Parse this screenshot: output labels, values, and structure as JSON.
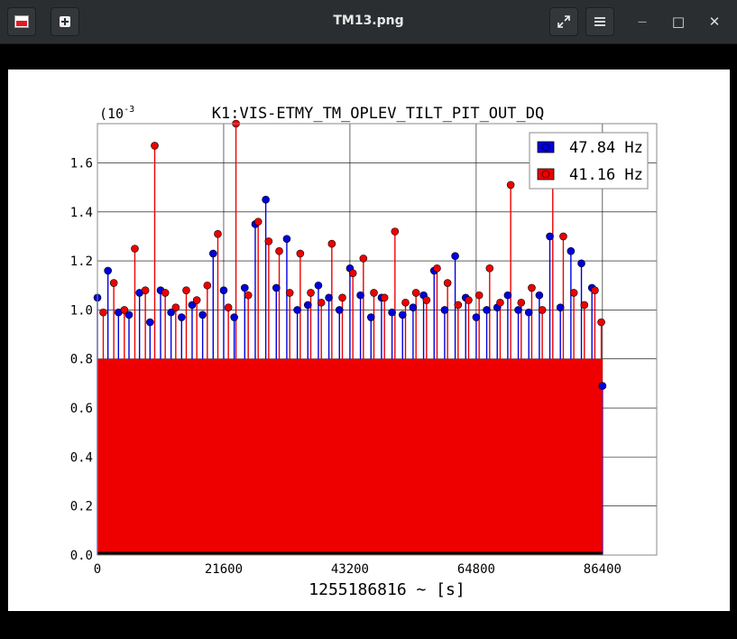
{
  "window": {
    "title": "TM13.png",
    "app_icon": "image-viewer-icon",
    "new_tab_icon": "plus-icon",
    "fullscreen_icon": "expand-icon",
    "menu_icon": "hamburger-icon",
    "minimize_icon": "minimize-icon",
    "maximize_icon": "maximize-icon",
    "close_icon": "close-icon",
    "minimize_glyph": "—",
    "maximize_glyph": "□",
    "close_glyph": "✕"
  },
  "chart_data": {
    "type": "scatter",
    "style": "stem",
    "title": "K1:VIS-ETMY_TM_OPLEV_TILT_PIT_OUT_DQ",
    "xlabel": "1255186816 ~ [s]",
    "ylabel": "",
    "y_scale_label": "(10",
    "y_scale_exp": "-3",
    "xlim": [
      0,
      86400
    ],
    "ylim": [
      0.0,
      1.76
    ],
    "xticks": [
      0,
      21600,
      43200,
      64800,
      86400
    ],
    "xtick_labels": [
      "0",
      "21600",
      "43200",
      "64800",
      "86400"
    ],
    "yticks": [
      0.0,
      0.2,
      0.4,
      0.6,
      0.8,
      1.0,
      1.2,
      1.4,
      1.6
    ],
    "ytick_labels": [
      "0.0",
      "0.2",
      "0.4",
      "0.6",
      "0.8",
      "1.0",
      "1.2",
      "1.4",
      "1.6"
    ],
    "grid": true,
    "legend_position": "top-right",
    "series": [
      {
        "name": "47.84 Hz",
        "color": "#0000dd",
        "x": [
          0,
          1800,
          3600,
          5400,
          7200,
          9000,
          10800,
          12600,
          14400,
          16200,
          18000,
          19800,
          21600,
          23400,
          25200,
          27000,
          28800,
          30600,
          32400,
          34200,
          36000,
          37800,
          39600,
          41400,
          43200,
          45000,
          46800,
          48600,
          50400,
          52200,
          54000,
          55800,
          57600,
          59400,
          61200,
          63000,
          64800,
          66600,
          68400,
          70200,
          72000,
          73800,
          75600,
          77400,
          79200,
          81000,
          82800,
          84600,
          86400
        ],
        "y": [
          1.05,
          1.16,
          0.99,
          0.98,
          1.07,
          0.95,
          1.08,
          0.99,
          0.97,
          1.02,
          0.98,
          1.23,
          1.08,
          0.97,
          1.09,
          1.35,
          1.45,
          1.09,
          1.29,
          1.0,
          1.02,
          1.1,
          1.05,
          1.0,
          1.17,
          1.06,
          0.97,
          1.05,
          0.99,
          0.98,
          1.01,
          1.06,
          1.16,
          1.0,
          1.22,
          1.05,
          0.97,
          1.0,
          1.01,
          1.06,
          1.0,
          0.99,
          1.06,
          1.3,
          1.01,
          1.24,
          1.19,
          1.09,
          0.69
        ]
      },
      {
        "name": "41.16 Hz",
        "color": "#ee0000",
        "x": [
          1000,
          2800,
          4600,
          6400,
          8200,
          9800,
          11600,
          13400,
          15200,
          17000,
          18800,
          20600,
          22400,
          23700,
          25800,
          27500,
          29300,
          31100,
          32900,
          34700,
          36500,
          38300,
          40100,
          41900,
          43700,
          45500,
          47300,
          49100,
          50900,
          52700,
          54500,
          56300,
          58100,
          59900,
          61700,
          63500,
          65300,
          67100,
          68900,
          70700,
          72500,
          74300,
          76100,
          77900,
          79700,
          81500,
          83300,
          85100,
          86200
        ],
        "y": [
          0.99,
          1.11,
          1.0,
          1.25,
          1.08,
          1.67,
          1.07,
          1.01,
          1.08,
          1.04,
          1.1,
          1.31,
          1.01,
          1.76,
          1.06,
          1.36,
          1.28,
          1.24,
          1.07,
          1.23,
          1.07,
          1.03,
          1.27,
          1.05,
          1.15,
          1.21,
          1.07,
          1.05,
          1.32,
          1.03,
          1.07,
          1.04,
          1.17,
          1.11,
          1.02,
          1.04,
          1.06,
          1.17,
          1.03,
          1.51,
          1.03,
          1.09,
          1.0,
          1.54,
          1.3,
          1.07,
          1.02,
          1.08,
          0.95
        ]
      }
    ]
  }
}
